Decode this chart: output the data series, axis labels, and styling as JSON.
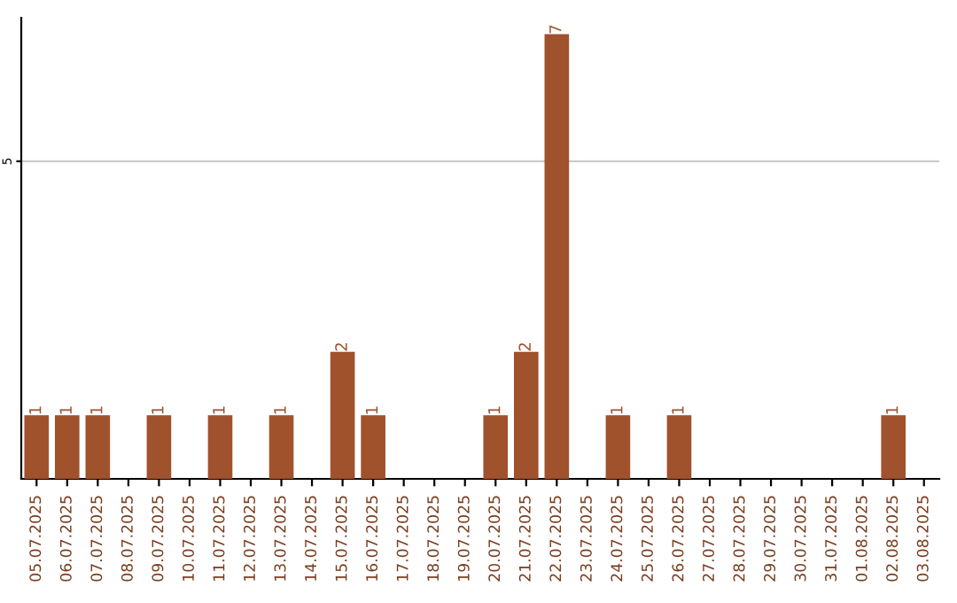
{
  "chart_data": {
    "type": "bar",
    "categories": [
      "05.07.2025",
      "06.07.2025",
      "07.07.2025",
      "08.07.2025",
      "09.07.2025",
      "10.07.2025",
      "11.07.2025",
      "12.07.2025",
      "13.07.2025",
      "14.07.2025",
      "15.07.2025",
      "16.07.2025",
      "17.07.2025",
      "18.07.2025",
      "19.07.2025",
      "20.07.2025",
      "21.07.2025",
      "22.07.2025",
      "23.07.2025",
      "24.07.2025",
      "25.07.2025",
      "26.07.2025",
      "27.07.2025",
      "28.07.2025",
      "29.07.2025",
      "30.07.2025",
      "31.07.2025",
      "01.08.2025",
      "02.08.2025",
      "03.08.2025"
    ],
    "values": [
      1,
      1,
      1,
      0,
      1,
      0,
      1,
      0,
      1,
      0,
      2,
      1,
      0,
      0,
      0,
      1,
      2,
      7,
      0,
      1,
      0,
      1,
      0,
      0,
      0,
      0,
      0,
      0,
      1,
      0
    ],
    "value_labels": [
      "1",
      "1",
      "1",
      null,
      "1",
      null,
      "1",
      null,
      "1",
      null,
      "2",
      "1",
      null,
      null,
      null,
      "1",
      "2",
      "7",
      null,
      "1",
      null,
      "1",
      null,
      null,
      null,
      null,
      null,
      null,
      "1",
      null
    ],
    "color": "#a0522d",
    "ylim": [
      0,
      7.26
    ],
    "yticks": [
      5
    ],
    "grid": "y"
  }
}
